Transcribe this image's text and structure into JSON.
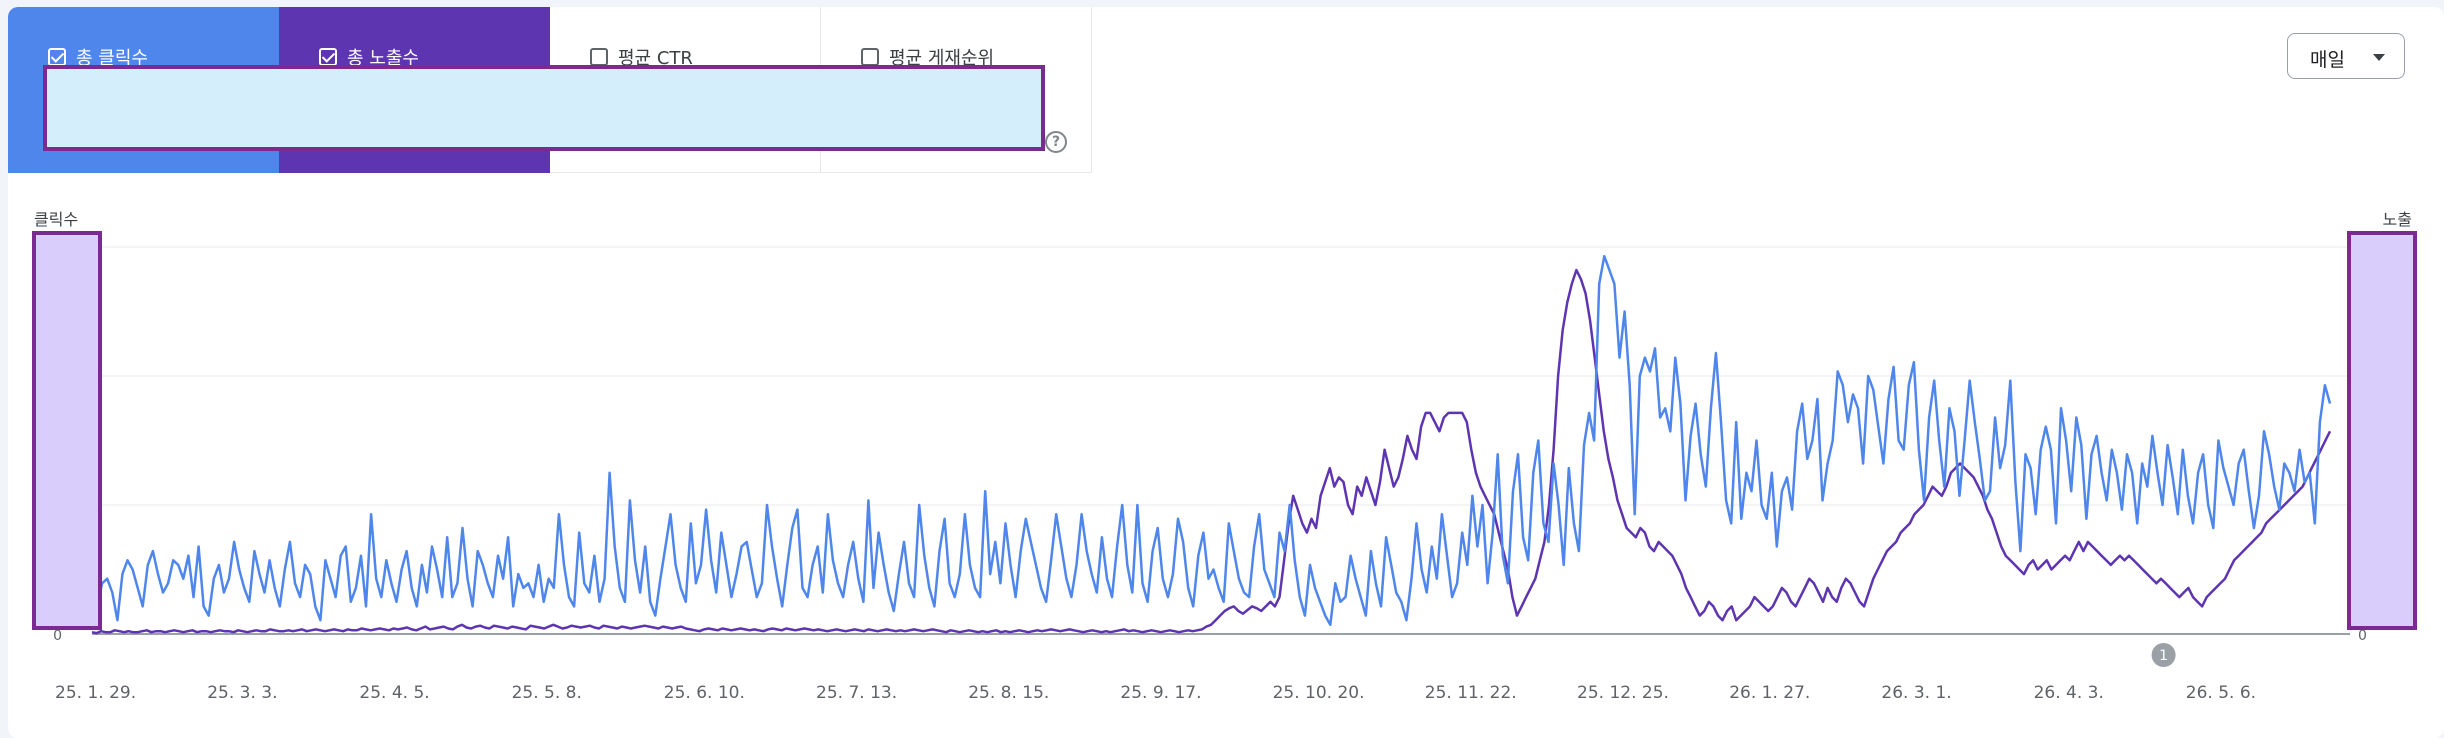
{
  "metric_tiles": [
    {
      "label": "총 클릭수",
      "checked": true,
      "color": "#4f86ec"
    },
    {
      "label": "총 노출수",
      "checked": true,
      "color": "#5e35b1"
    },
    {
      "label": "평균 CTR",
      "checked": false
    },
    {
      "label": "평균 게재순위",
      "checked": false
    }
  ],
  "period_select": {
    "value": "매일"
  },
  "help_icon": {
    "glyph": "?"
  },
  "annotation_marker": {
    "label": "1",
    "date": "26. 4. 3."
  },
  "chart_data": {
    "type": "line",
    "left_axis_label": "클릭수",
    "right_axis_label": "노출",
    "left_zero_label": "0",
    "right_zero_label": "0",
    "x_tick_labels": [
      "25. 1. 29.",
      "25. 3. 3.",
      "25. 4. 5.",
      "25. 5. 8.",
      "25. 6. 10.",
      "25. 7. 13.",
      "25. 8. 15.",
      "25. 9. 17.",
      "25. 10. 20.",
      "25. 11. 22.",
      "25. 12. 25.",
      "26. 1. 27.",
      "26. 3. 1.",
      "26. 4. 3.",
      "26. 5. 6."
    ],
    "gridlines": true,
    "series": [
      {
        "name": "총 클릭수",
        "color": "#4f86ec",
        "values": [
          40,
          30,
          55,
          60,
          45,
          15,
          65,
          80,
          70,
          50,
          30,
          75,
          90,
          65,
          45,
          55,
          80,
          75,
          60,
          85,
          40,
          95,
          30,
          20,
          60,
          75,
          45,
          60,
          100,
          70,
          50,
          35,
          90,
          65,
          45,
          80,
          50,
          30,
          70,
          100,
          55,
          40,
          75,
          65,
          30,
          15,
          80,
          60,
          40,
          85,
          95,
          35,
          50,
          85,
          30,
          130,
          60,
          40,
          80,
          55,
          35,
          70,
          90,
          50,
          30,
          75,
          45,
          95,
          70,
          40,
          105,
          40,
          55,
          115,
          60,
          30,
          90,
          75,
          55,
          40,
          85,
          60,
          105,
          30,
          65,
          50,
          55,
          40,
          75,
          35,
          60,
          50,
          130,
          75,
          40,
          30,
          110,
          55,
          45,
          85,
          35,
          60,
          175,
          95,
          50,
          35,
          145,
          80,
          45,
          95,
          35,
          20,
          60,
          95,
          130,
          75,
          50,
          35,
          120,
          55,
          75,
          135,
          80,
          45,
          110,
          75,
          40,
          65,
          95,
          100,
          70,
          40,
          55,
          140,
          95,
          60,
          30,
          75,
          115,
          135,
          50,
          40,
          75,
          95,
          45,
          130,
          80,
          55,
          40,
          75,
          100,
          60,
          35,
          145,
          50,
          110,
          75,
          45,
          25,
          65,
          100,
          55,
          40,
          140,
          85,
          50,
          30,
          90,
          125,
          55,
          40,
          65,
          130,
          75,
          50,
          40,
          155,
          65,
          100,
          55,
          120,
          75,
          40,
          90,
          125,
          100,
          75,
          50,
          35,
          80,
          130,
          95,
          60,
          40,
          75,
          130,
          90,
          65,
          45,
          105,
          60,
          40,
          95,
          140,
          75,
          45,
          140,
          55,
          35,
          90,
          115,
          60,
          40,
          65,
          125,
          100,
          50,
          30,
          85,
          110,
          60,
          70,
          50,
          35,
          120,
          90,
          60,
          45,
          40,
          95,
          130,
          70,
          55,
          40,
          110,
          90,
          140,
          80,
          40,
          20,
          75,
          50,
          35,
          20,
          10,
          55,
          35,
          40,
          85,
          60,
          40,
          20,
          90,
          55,
          30,
          105,
          75,
          45,
          35,
          15,
          60,
          120,
          70,
          45,
          95,
          60,
          130,
          85,
          40,
          55,
          110,
          75,
          150,
          95,
          140,
          55,
          110,
          195,
          85,
          55,
          155,
          195,
          105,
          80,
          175,
          210,
          120,
          100,
          185,
          140,
          75,
          180,
          120,
          90,
          205,
          240,
          210,
          380,
          410,
          395,
          380,
          300,
          350,
          270,
          130,
          280,
          300,
          285,
          310,
          235,
          245,
          220,
          300,
          250,
          145,
          215,
          250,
          195,
          160,
          245,
          305,
          230,
          145,
          120,
          230,
          125,
          175,
          155,
          210,
          140,
          125,
          175,
          95,
          155,
          170,
          135,
          220,
          250,
          190,
          210,
          255,
          145,
          185,
          210,
          285,
          270,
          230,
          260,
          245,
          185,
          280,
          265,
          225,
          185,
          255,
          290,
          210,
          200,
          270,
          295,
          200,
          145,
          235,
          275,
          210,
          160,
          245,
          220,
          150,
          210,
          275,
          230,
          190,
          145,
          155,
          235,
          180,
          205,
          275,
          165,
          90,
          195,
          180,
          130,
          200,
          225,
          200,
          120,
          245,
          210,
          155,
          235,
          205,
          125,
          195,
          215,
          175,
          145,
          200,
          175,
          135,
          195,
          175,
          120,
          185,
          160,
          215,
          175,
          140,
          205,
          170,
          130,
          200,
          150,
          120,
          175,
          195,
          140,
          115,
          210,
          180,
          160,
          140,
          185,
          200,
          155,
          115,
          150,
          220,
          195,
          160,
          135,
          185,
          175,
          155,
          200,
          165,
          175,
          120,
          230,
          270,
          250
        ]
      },
      {
        "name": "총 노출수",
        "color": "#5e35b1",
        "values": [
          2,
          1,
          3,
          2,
          2,
          4,
          3,
          2,
          3,
          2,
          2,
          3,
          4,
          2,
          3,
          3,
          2,
          3,
          4,
          3,
          2,
          3,
          4,
          2,
          3,
          3,
          2,
          3,
          4,
          3,
          3,
          2,
          4,
          3,
          2,
          3,
          4,
          3,
          3,
          5,
          4,
          3,
          3,
          4,
          3,
          4,
          5,
          3,
          4,
          5,
          4,
          3,
          4,
          5,
          4,
          3,
          5,
          4,
          4,
          6,
          5,
          4,
          5,
          6,
          5,
          4,
          6,
          5,
          6,
          7,
          5,
          4,
          6,
          8,
          5,
          6,
          7,
          8,
          6,
          5,
          8,
          10,
          7,
          6,
          8,
          9,
          7,
          6,
          9,
          8,
          7,
          6,
          8,
          7,
          6,
          5,
          9,
          8,
          7,
          6,
          8,
          10,
          8,
          6,
          7,
          9,
          8,
          7,
          8,
          9,
          7,
          6,
          9,
          8,
          7,
          6,
          8,
          7,
          6,
          7,
          8,
          9,
          8,
          7,
          6,
          8,
          7,
          6,
          7,
          8,
          6,
          5,
          4,
          3,
          5,
          6,
          5,
          4,
          6,
          5,
          4,
          5,
          6,
          5,
          4,
          5,
          4,
          3,
          5,
          6,
          5,
          4,
          6,
          5,
          4,
          5,
          6,
          5,
          4,
          5,
          4,
          3,
          4,
          5,
          4,
          3,
          4,
          5,
          4,
          3,
          5,
          4,
          3,
          4,
          5,
          4,
          3,
          4,
          3,
          4,
          5,
          4,
          3,
          4,
          5,
          4,
          3,
          2,
          4,
          3,
          2,
          3,
          4,
          3,
          2,
          3,
          2,
          3,
          4,
          2,
          3,
          2,
          3,
          4,
          3,
          2,
          3,
          4,
          3,
          4,
          5,
          4,
          3,
          4,
          5,
          4,
          3,
          2,
          3,
          4,
          3,
          2,
          3,
          2,
          3,
          4,
          5,
          3,
          4,
          3,
          2,
          3,
          4,
          3,
          2,
          3,
          4,
          3,
          2,
          3,
          4,
          3,
          4,
          5,
          8,
          10,
          15,
          20,
          25,
          28,
          30,
          25,
          22,
          26,
          30,
          28,
          25,
          30,
          35,
          30,
          40,
          80,
          120,
          150,
          135,
          120,
          110,
          125,
          115,
          150,
          165,
          180,
          160,
          170,
          165,
          140,
          130,
          160,
          150,
          170,
          155,
          140,
          165,
          200,
          180,
          160,
          170,
          190,
          215,
          200,
          190,
          225,
          240,
          240,
          230,
          220,
          235,
          240,
          240,
          240,
          240,
          230,
          200,
          175,
          160,
          150,
          140,
          130,
          110,
          90,
          70,
          40,
          20,
          30,
          40,
          50,
          60,
          80,
          100,
          140,
          200,
          280,
          330,
          360,
          380,
          395,
          385,
          370,
          340,
          300,
          260,
          220,
          190,
          170,
          145,
          130,
          115,
          110,
          105,
          115,
          110,
          95,
          90,
          100,
          95,
          90,
          85,
          75,
          65,
          50,
          40,
          30,
          20,
          25,
          35,
          30,
          20,
          15,
          25,
          30,
          15,
          20,
          25,
          30,
          40,
          35,
          30,
          25,
          30,
          40,
          50,
          45,
          35,
          30,
          40,
          50,
          60,
          55,
          45,
          35,
          50,
          40,
          35,
          50,
          60,
          55,
          45,
          35,
          30,
          45,
          60,
          70,
          80,
          90,
          95,
          100,
          110,
          115,
          120,
          130,
          135,
          140,
          150,
          160,
          155,
          150,
          160,
          175,
          180,
          185,
          180,
          175,
          170,
          160,
          150,
          135,
          125,
          110,
          95,
          85,
          80,
          75,
          70,
          65,
          75,
          80,
          70,
          75,
          80,
          70,
          75,
          80,
          85,
          80,
          90,
          100,
          90,
          100,
          95,
          90,
          85,
          80,
          75,
          80,
          85,
          80,
          85,
          80,
          75,
          70,
          65,
          60,
          55,
          60,
          55,
          50,
          45,
          40,
          45,
          50,
          40,
          35,
          30,
          40,
          45,
          50,
          55,
          60,
          70,
          80,
          85,
          90,
          95,
          100,
          105,
          110,
          120,
          125,
          130,
          135,
          140,
          145,
          150,
          155,
          160,
          170,
          180,
          190,
          200,
          210,
          220
        ]
      }
    ]
  }
}
